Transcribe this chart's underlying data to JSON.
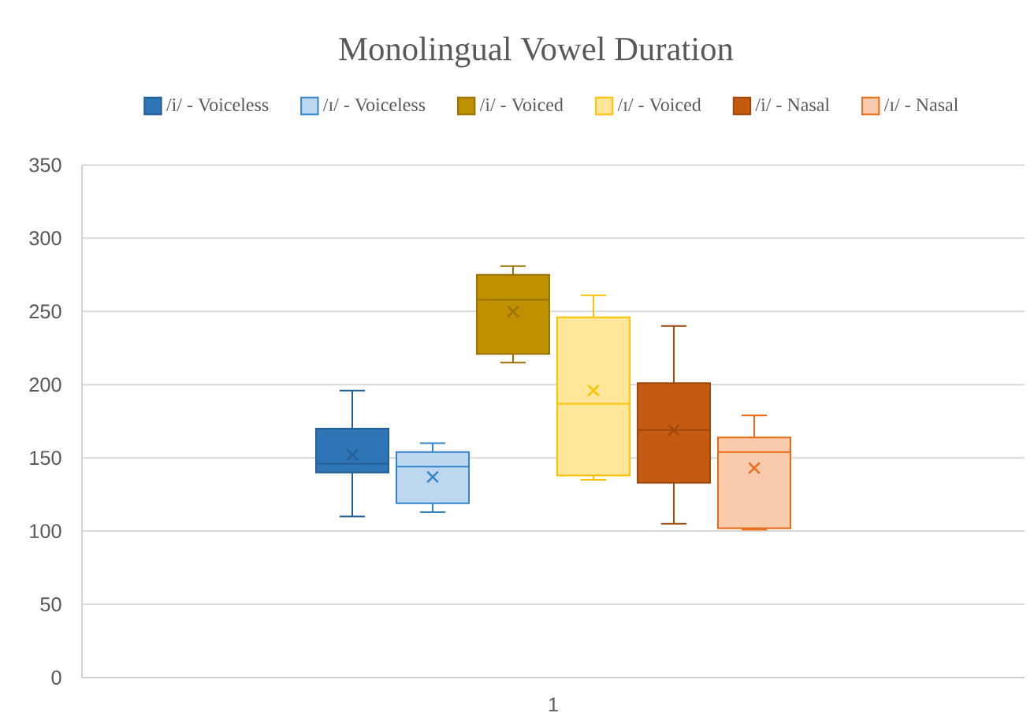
{
  "chart_data": {
    "type": "box",
    "title": "Monolingual Vowel Duration",
    "categories": [
      "1"
    ],
    "series": [
      {
        "name": "/i/ - Voiceless",
        "color": "#2e75b6",
        "boxes": [
          {
            "low": 110,
            "q1": 140,
            "median": 146,
            "q3": 170,
            "high": 196,
            "mean": 152
          }
        ]
      },
      {
        "name": "/ɪ/ - Voiceless",
        "color": "#bdd7ee",
        "boxes": [
          {
            "low": 113,
            "q1": 119,
            "median": 144,
            "q3": 154,
            "high": 160,
            "mean": 137
          }
        ]
      },
      {
        "name": "/i/ - Voiced",
        "color": "#bf9000",
        "boxes": [
          {
            "low": 215,
            "q1": 221,
            "median": 258,
            "q3": 275,
            "high": 281,
            "mean": 250
          }
        ]
      },
      {
        "name": "/ɪ/ - Voiced",
        "color": "#ffe699",
        "boxes": [
          {
            "low": 135,
            "q1": 138,
            "median": 187,
            "q3": 246,
            "high": 261,
            "mean": 196
          }
        ]
      },
      {
        "name": "/i/ - Nasal",
        "color": "#c55a11",
        "boxes": [
          {
            "low": 105,
            "q1": 133,
            "median": 169,
            "q3": 201,
            "high": 240,
            "mean": 169
          }
        ]
      },
      {
        "name": "/ɪ/ - Nasal",
        "color": "#f8cbad",
        "boxes": [
          {
            "low": 101,
            "q1": 102,
            "median": 154,
            "q3": 164,
            "high": 179,
            "mean": 143
          }
        ]
      }
    ],
    "ylim": [
      0,
      350
    ],
    "yticks": [
      0,
      50,
      100,
      150,
      200,
      250,
      300,
      350
    ],
    "grid": "y",
    "legend": "top"
  }
}
